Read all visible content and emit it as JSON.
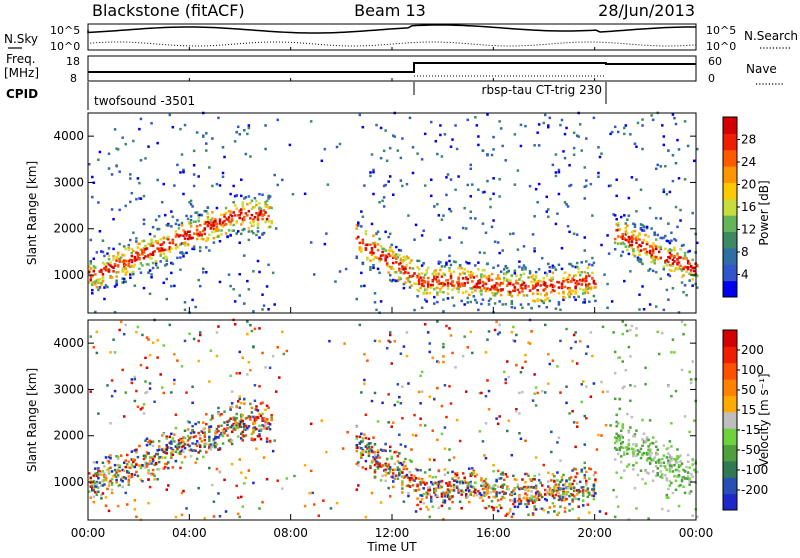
{
  "header": {
    "station": "Blackstone (fitACF)",
    "beam": "Beam 13",
    "date": "28/Jun/2013"
  },
  "top_panels": {
    "nsky_label": "N.Sky",
    "nsearch_label": "N.Search",
    "noise_ticks": [
      "10^5",
      "10^0"
    ],
    "freq_label_1": "Freq.",
    "freq_label_2": "[MHz]",
    "freq_ticks": [
      "18",
      "8"
    ],
    "nave_label": "Nave",
    "nave_ticks": [
      "60",
      "0"
    ],
    "cpid_label": "CPID",
    "cpid_1": "twofsound -3501",
    "cpid_2": "rbsp-tau CT-trig 230"
  },
  "chart_data": [
    {
      "type": "heatmap",
      "name": "power",
      "ylabel": "Slant Range [km]",
      "yticks": [
        1000,
        2000,
        3000,
        4000
      ],
      "ylim": [
        180,
        4500
      ],
      "xlim": [
        0,
        24
      ],
      "colorbar_label": "Power [dB]",
      "colorbar_ticks": [
        "28",
        "24",
        "20",
        "16",
        "12",
        "8",
        "4"
      ],
      "colors": [
        "#0000ee",
        "#3355cc",
        "#2e6ea4",
        "#3c8a64",
        "#63b45a",
        "#c8dc3c",
        "#ffc800",
        "#ff9600",
        "#ff5a00",
        "#f01e00",
        "#d20000"
      ]
    },
    {
      "type": "heatmap",
      "name": "velocity",
      "ylabel": "Slant Range [km]",
      "yticks": [
        1000,
        2000,
        3000,
        4000
      ],
      "ylim": [
        180,
        4500
      ],
      "xlim": [
        0,
        24
      ],
      "xlabel": "Time UT",
      "xticks": [
        "00:00",
        "04:00",
        "08:00",
        "12:00",
        "16:00",
        "20:00",
        "00:00"
      ],
      "colorbar_label": "Velocity [m s⁻¹]",
      "colorbar_ticks": [
        "200",
        "100",
        "50",
        "15",
        "-15",
        "-50",
        "-100",
        "-200"
      ],
      "colors": [
        "#1e28c8",
        "#2850b4",
        "#2f7a50",
        "#4fa03c",
        "#6ed23c",
        "#bebebe",
        "#ffaa00",
        "#ff8200",
        "#ff5000",
        "#f01e00",
        "#d20000"
      ]
    }
  ]
}
